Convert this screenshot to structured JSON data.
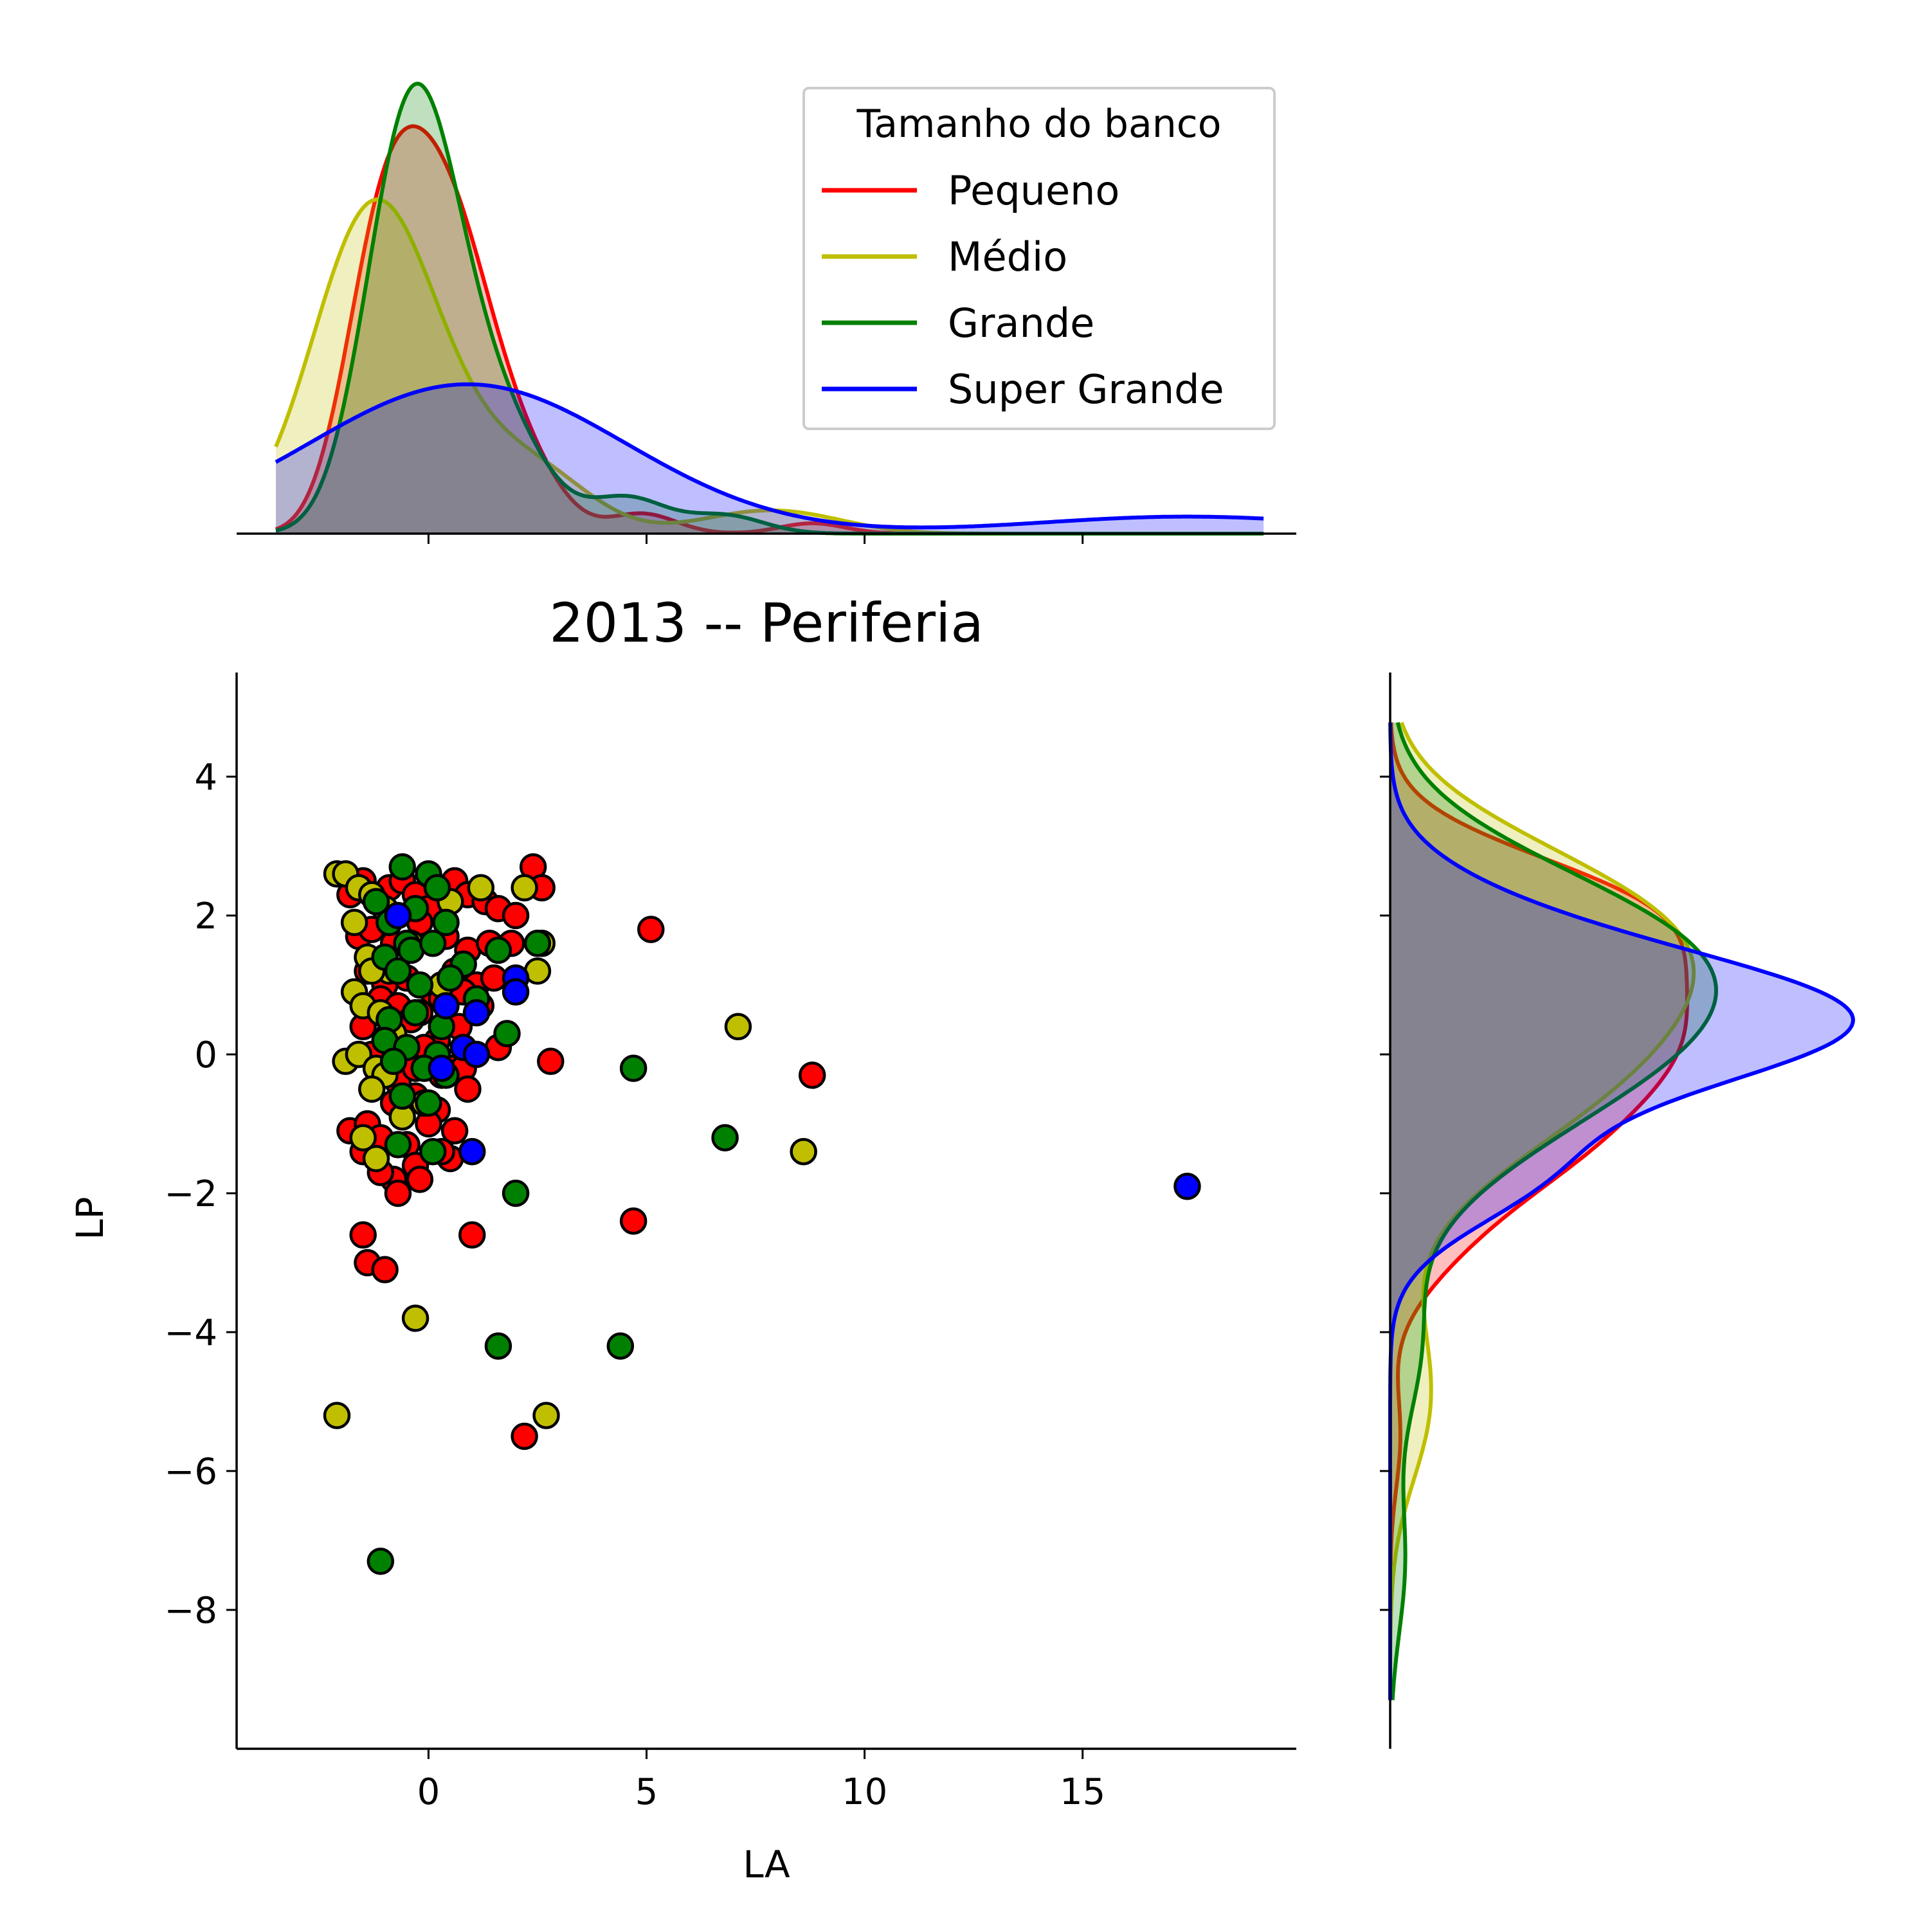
{
  "chart_data": {
    "type": "scatter",
    "title": "2013 -- Periferia",
    "xlabel": "LA",
    "ylabel": "LP",
    "xlim": [
      -4.4,
      19.9
    ],
    "ylim": [
      -10.0,
      5.5
    ],
    "xticks": [
      0,
      5,
      10,
      15
    ],
    "xtick_labels": [
      "0",
      "5",
      "10",
      "15"
    ],
    "yticks": [
      4,
      2,
      0,
      -2,
      -4,
      -6,
      -8
    ],
    "ytick_labels": [
      "4",
      "2",
      "0",
      "−2",
      "−4",
      "−6",
      "−8"
    ],
    "grid": false,
    "legend": {
      "title": "Tamanho do banco",
      "placement": "top-right of top marginal",
      "entries": [
        "Pequeno",
        "Médio",
        "Grande",
        "Super Grande"
      ]
    },
    "series": [
      {
        "name": "Pequeno",
        "color": "#ff0000",
        "x": [
          -1.8,
          -1.5,
          -1.2,
          -0.9,
          -0.6,
          -0.3,
          0.0,
          0.3,
          0.6,
          0.9,
          1.3,
          1.6,
          2.0,
          2.4,
          2.6,
          -1.6,
          -1.3,
          -0.8,
          -0.2,
          0.4,
          0.9,
          1.4,
          1.9,
          -1.4,
          -1.0,
          -0.5,
          0.1,
          0.6,
          1.1,
          1.5,
          -1.1,
          -0.7,
          -0.2,
          0.3,
          0.8,
          1.2,
          -1.5,
          -0.9,
          -0.4,
          0.2,
          0.7,
          1.6,
          -1.3,
          -0.6,
          -0.1,
          0.5,
          1.0,
          0.8,
          -1.8,
          -1.4,
          -0.8,
          -0.3,
          0.2,
          0.9,
          -1.1,
          -0.5,
          0.0,
          0.5,
          -0.8,
          -0.3,
          0.3,
          -1.5,
          -1.1,
          -0.7,
          -0.2,
          0.6,
          -0.7,
          -0.3,
          0.3,
          5.1,
          2.8,
          8.8,
          4.7,
          1.0,
          -1.5,
          -1.4,
          -1.0,
          2.2
        ],
        "y": [
          2.3,
          2.5,
          2.2,
          2.4,
          2.5,
          2.3,
          2.1,
          2.4,
          2.5,
          2.3,
          2.2,
          2.1,
          2.0,
          2.7,
          2.4,
          1.7,
          1.8,
          1.6,
          1.9,
          1.7,
          1.5,
          1.6,
          1.6,
          1.2,
          1.0,
          1.1,
          0.9,
          1.2,
          1.0,
          1.1,
          0.8,
          0.7,
          0.6,
          0.8,
          0.9,
          0.7,
          0.4,
          0.3,
          0.5,
          0.2,
          0.4,
          0.1,
          0.0,
          -0.1,
          0.1,
          -0.2,
          0.0,
          -0.2,
          -1.1,
          -1.0,
          -0.7,
          -0.6,
          -0.8,
          -0.5,
          -1.2,
          -1.3,
          -1.0,
          -1.5,
          -1.8,
          -1.6,
          -1.4,
          -1.4,
          -1.7,
          -2.0,
          -1.8,
          -1.1,
          -0.4,
          -0.2,
          -0.3,
          1.8,
          -0.1,
          -0.3,
          -2.4,
          -2.6,
          -2.6,
          -3.0,
          -3.1,
          -5.5
        ]
      },
      {
        "name": "Médio",
        "color": "#bfbf00",
        "x": [
          -2.1,
          -1.9,
          -1.6,
          -1.3,
          -1.0,
          0.5,
          1.2,
          2.2,
          -1.7,
          -1.4,
          -0.9,
          -0.4,
          0.3,
          2.6,
          2.5,
          -1.3,
          -1.7,
          -1.5,
          -1.1,
          -0.8,
          -1.9,
          -1.6,
          -1.2,
          -1.0,
          -1.3,
          -1.5,
          -1.2,
          -0.6,
          -0.1,
          7.1,
          8.6,
          -0.3,
          -2.1,
          2.7
        ],
        "y": [
          2.6,
          2.6,
          2.4,
          2.3,
          2.1,
          2.2,
          2.4,
          2.4,
          1.9,
          1.4,
          1.2,
          1.6,
          1.0,
          1.6,
          1.2,
          1.2,
          0.9,
          0.7,
          0.6,
          0.3,
          -0.1,
          0.0,
          -0.2,
          -0.3,
          -0.5,
          -1.2,
          -1.5,
          -0.9,
          -0.7,
          0.4,
          -1.4,
          -3.8,
          -5.2,
          -5.2
        ]
      },
      {
        "name": "Grande",
        "color": "#008000",
        "x": [
          -0.6,
          0.0,
          -1.2,
          0.2,
          -0.3,
          -0.9,
          0.4,
          -0.5,
          1.6,
          2.5,
          -1.0,
          -0.4,
          0.1,
          0.8,
          -0.7,
          -0.2,
          0.5,
          1.1,
          -0.9,
          -0.3,
          0.3,
          1.8,
          -1.0,
          -0.5,
          0.2,
          -0.8,
          -0.1,
          0.4,
          -0.6,
          0.0,
          -0.7,
          0.1,
          4.7,
          6.8,
          2.0,
          1.6,
          4.4,
          -1.1
        ],
        "y": [
          2.7,
          2.6,
          2.2,
          2.4,
          2.1,
          1.9,
          1.9,
          1.6,
          1.5,
          1.6,
          1.4,
          1.5,
          1.6,
          1.3,
          1.2,
          1.0,
          1.1,
          0.8,
          0.5,
          0.6,
          0.4,
          0.3,
          0.2,
          0.1,
          0.0,
          -0.1,
          -0.2,
          -0.3,
          -0.6,
          -0.7,
          -1.3,
          -1.4,
          -0.2,
          -1.2,
          -2.0,
          -4.2,
          -4.2,
          -7.3
        ]
      },
      {
        "name": "Super Grande",
        "color": "#0000ff",
        "x": [
          -0.7,
          2.0,
          2.0,
          0.4,
          1.1,
          0.8,
          1.1,
          0.3,
          1.0,
          17.4
        ],
        "y": [
          2.0,
          1.1,
          0.9,
          0.7,
          0.6,
          0.1,
          0.0,
          -0.2,
          -1.4,
          -1.9
        ]
      }
    ]
  }
}
